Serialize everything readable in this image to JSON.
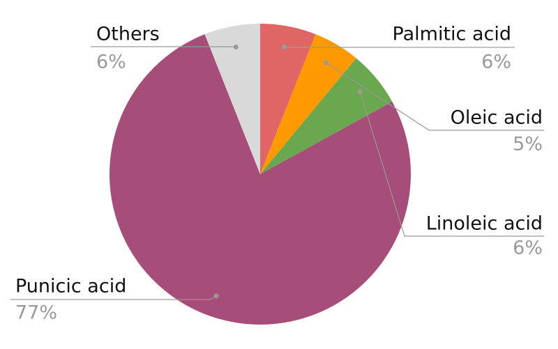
{
  "chart_data": {
    "type": "pie",
    "categories": [
      "Palmitic acid",
      "Oleic acid",
      "Linoleic acid",
      "Punicic acid",
      "Others"
    ],
    "values": [
      6,
      5,
      6,
      77,
      6
    ],
    "value_labels": [
      "6%",
      "5%",
      "6%",
      "77%",
      "6%"
    ],
    "colors": [
      "#e06666",
      "#ff9900",
      "#6aa84f",
      "#a64d79",
      "#d9d9d9"
    ]
  }
}
